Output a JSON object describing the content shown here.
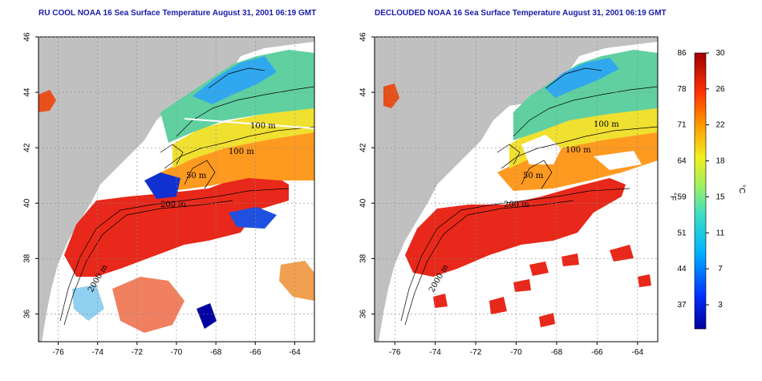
{
  "panels": [
    {
      "title": "RU COOL NOAA 16 Sea Surface Temperature August 31, 2001 06:19 GMT",
      "contour_labels": [
        "100 m",
        "100 m",
        "50 m",
        "200 m",
        "2000 m"
      ]
    },
    {
      "title": "DECLOUDED NOAA 16 Sea Surface Temperature August 31, 2001 06:19 GMT",
      "contour_labels": [
        "100 m",
        "100 m",
        "50 m",
        "200 m",
        "2000 m"
      ]
    }
  ],
  "axes": {
    "x_ticks": [
      "-76",
      "-74",
      "-72",
      "-70",
      "-68",
      "-66",
      "-64"
    ],
    "y_ticks": [
      "36",
      "38",
      "40",
      "42",
      "44",
      "46"
    ]
  },
  "colorbar": {
    "unit_f": "°F",
    "unit_c": "°C",
    "fahrenheit_ticks": [
      "86",
      "78",
      "71",
      "64",
      "59",
      "51",
      "44",
      "37"
    ],
    "celsius_ticks": [
      "30",
      "26",
      "22",
      "18",
      "15",
      "11",
      "7",
      "3"
    ]
  },
  "colors": {
    "land": "#c0c0c0",
    "title": "#1a1aa8",
    "warm": "#e8281a",
    "cold": "#0000b0"
  }
}
